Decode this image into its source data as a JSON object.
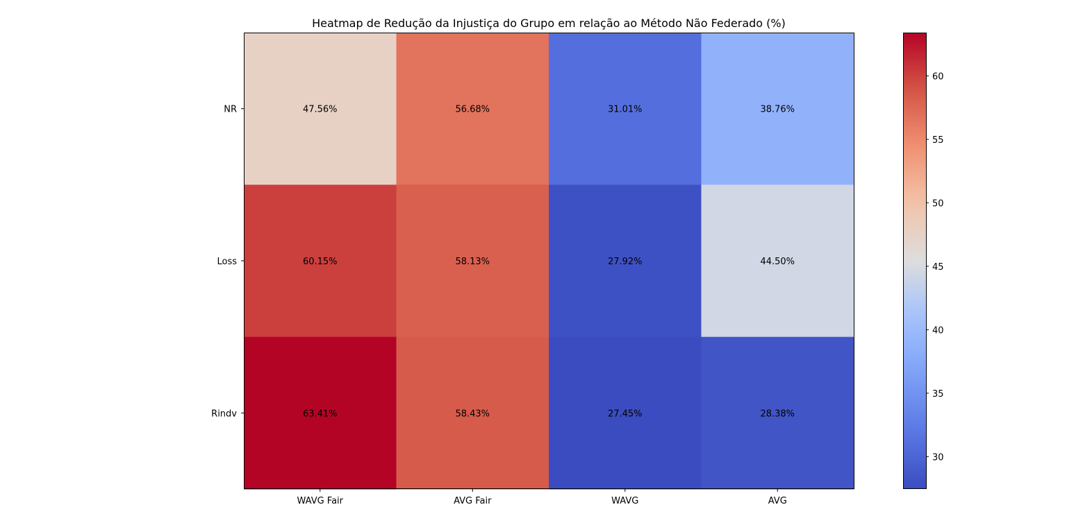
{
  "chart_data": {
    "type": "heatmap",
    "title": "Heatmap de Redução da Injustiça do Grupo em relação ao Método Não Federado (%)",
    "x_categories": [
      "WAVG Fair",
      "AVG Fair",
      "WAVG",
      "AVG"
    ],
    "y_categories": [
      "NR",
      "Loss",
      "Rindv"
    ],
    "values": [
      [
        47.56,
        56.68,
        31.01,
        38.76
      ],
      [
        60.15,
        58.13,
        27.92,
        44.5
      ],
      [
        63.41,
        58.43,
        27.45,
        28.38
      ]
    ],
    "cell_labels": [
      [
        "47.56%",
        "56.68%",
        "31.01%",
        "38.76%"
      ],
      [
        "60.15%",
        "58.13%",
        "27.92%",
        "44.50%"
      ],
      [
        "63.41%",
        "58.43%",
        "27.45%",
        "28.38%"
      ]
    ],
    "colormap": "coolwarm",
    "colorbar": {
      "range": [
        27.45,
        63.41
      ],
      "ticks": [
        "30",
        "35",
        "40",
        "45",
        "50",
        "55",
        "60"
      ],
      "tick_values": [
        30,
        35,
        40,
        45,
        50,
        55,
        60
      ]
    },
    "xlabel": "",
    "ylabel": ""
  }
}
